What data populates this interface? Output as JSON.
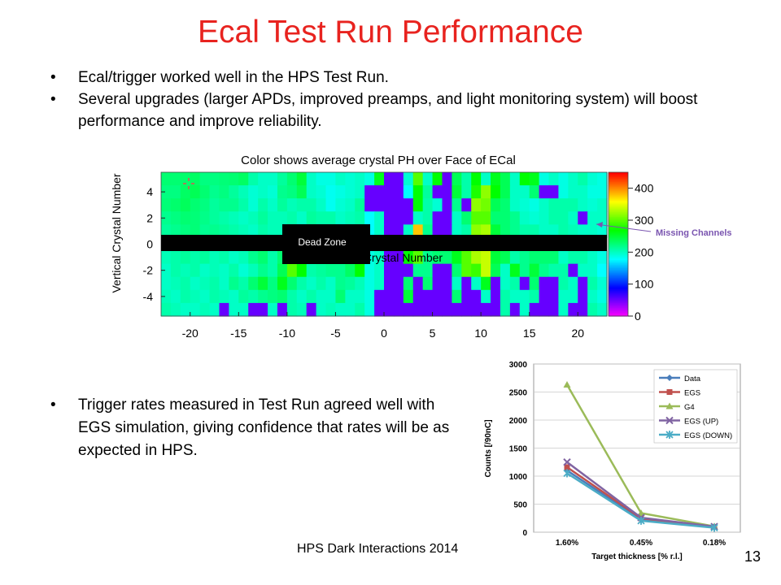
{
  "title": "Ecal Test Run Performance",
  "bullets_top": [
    "Ecal/trigger worked well in the HPS Test Run.",
    "Several upgrades (larger APDs, improved preamps, and light monitoring system) will boost performance and improve reliability."
  ],
  "bullets_bottom": [
    "Trigger rates measured in Test Run agreed well with EGS simulation, giving confidence that rates will be as expected in HPS."
  ],
  "footer": "HPS Dark Interactions 2014",
  "page_number": "13",
  "chart_data": [
    {
      "type": "heatmap",
      "title": "Color shows average crystal PH over Face of ECal",
      "xlabel": "Horizontal Crystal Number",
      "ylabel": "Vertical Crystal Number",
      "x_ticks": [
        "-20",
        "-15",
        "-10",
        "-5",
        "0",
        "5",
        "10",
        "15",
        "20"
      ],
      "y_ticks": [
        "4",
        "2",
        "0",
        "-2",
        "-4"
      ],
      "colorbar_ticks": [
        "400",
        "300",
        "200",
        "100",
        "0"
      ],
      "xlim": [
        -23,
        23
      ],
      "ylim": [
        -5.5,
        5.5
      ],
      "zlim": [
        0,
        450
      ],
      "annotations": {
        "dead_zone": "Dead Zone",
        "missing_channels": "Missing Channels"
      },
      "rows_y": [
        5,
        4,
        3,
        2,
        1,
        -1,
        -2,
        -3,
        -4,
        -5
      ],
      "x_start": -23,
      "z": [
        [
          230,
          230,
          232,
          235,
          225,
          225,
          228,
          230,
          235,
          210,
          200,
          200,
          215,
          230,
          250,
          200,
          190,
          190,
          200,
          195,
          200,
          190,
          260,
          0,
          0,
          195,
          300,
          200,
          270,
          0,
          240,
          210,
          270,
          200,
          260,
          240,
          200,
          270,
          260,
          190,
          200,
          190,
          200,
          210,
          195,
          190
        ],
        [
          225,
          225,
          235,
          240,
          230,
          220,
          225,
          215,
          205,
          195,
          200,
          195,
          220,
          225,
          240,
          200,
          195,
          185,
          190,
          195,
          200,
          0,
          0,
          0,
          0,
          180,
          270,
          215,
          0,
          0,
          250,
          210,
          280,
          320,
          270,
          240,
          200,
          200,
          230,
          0,
          0,
          190,
          200,
          200,
          190,
          190
        ],
        [
          228,
          232,
          238,
          230,
          225,
          215,
          220,
          220,
          210,
          195,
          210,
          200,
          215,
          205,
          210,
          210,
          200,
          185,
          195,
          200,
          215,
          0,
          0,
          0,
          0,
          0,
          270,
          210,
          195,
          0,
          220,
          0,
          320,
          310,
          240,
          230,
          200,
          195,
          190,
          200,
          210,
          210,
          210,
          200,
          195,
          200
        ],
        [
          220,
          225,
          230,
          228,
          222,
          215,
          210,
          205,
          200,
          205,
          215,
          205,
          205,
          210,
          200,
          215,
          210,
          210,
          200,
          205,
          210,
          180,
          200,
          0,
          0,
          0,
          200,
          210,
          0,
          0,
          200,
          230,
          300,
          300,
          230,
          230,
          220,
          200,
          195,
          200,
          210,
          210,
          200,
          0,
          200,
          200
        ],
        [
          215,
          220,
          225,
          228,
          218,
          220,
          215,
          210,
          205,
          200,
          210,
          205,
          205,
          215,
          210,
          205,
          220,
          215,
          225,
          230,
          210,
          180,
          200,
          0,
          0,
          200,
          380,
          220,
          0,
          0,
          200,
          210,
          320,
          330,
          250,
          230,
          220,
          210,
          210,
          200,
          200,
          210,
          205,
          200,
          200,
          195
        ],
        [
          205,
          210,
          215,
          210,
          215,
          205,
          210,
          200,
          205,
          220,
          230,
          210,
          230,
          270,
          260,
          230,
          200,
          210,
          240,
          245,
          270,
          190,
          200,
          0,
          0,
          270,
          300,
          220,
          230,
          230,
          260,
          300,
          330,
          340,
          250,
          240,
          210,
          220,
          230,
          230,
          230,
          200,
          210,
          210,
          200,
          190
        ],
        [
          200,
          210,
          205,
          210,
          200,
          205,
          200,
          210,
          195,
          205,
          220,
          210,
          240,
          300,
          270,
          210,
          215,
          220,
          220,
          235,
          270,
          190,
          200,
          0,
          0,
          0,
          220,
          220,
          0,
          0,
          230,
          300,
          290,
          340,
          240,
          200,
          260,
          220,
          250,
          220,
          210,
          210,
          0,
          200,
          200,
          180
        ],
        [
          200,
          205,
          210,
          200,
          205,
          210,
          200,
          220,
          210,
          230,
          250,
          225,
          260,
          230,
          210,
          200,
          210,
          200,
          220,
          215,
          205,
          190,
          200,
          0,
          0,
          230,
          0,
          230,
          0,
          0,
          200,
          0,
          200,
          260,
          0,
          200,
          210,
          0,
          230,
          0,
          0,
          210,
          200,
          0,
          210,
          195
        ],
        [
          205,
          200,
          210,
          205,
          200,
          210,
          205,
          200,
          215,
          210,
          220,
          225,
          230,
          210,
          200,
          210,
          200,
          200,
          230,
          200,
          200,
          190,
          0,
          0,
          0,
          250,
          0,
          0,
          0,
          0,
          230,
          0,
          0,
          200,
          0,
          210,
          200,
          200,
          210,
          0,
          0,
          200,
          200,
          0,
          200,
          190
        ],
        [
          210,
          205,
          200,
          200,
          205,
          200,
          0,
          200,
          200,
          0,
          0,
          200,
          0,
          210,
          205,
          0,
          200,
          205,
          200,
          200,
          210,
          190,
          0,
          0,
          0,
          0,
          0,
          0,
          0,
          0,
          0,
          0,
          0,
          0,
          0,
          210,
          0,
          200,
          0,
          0,
          0,
          200,
          0,
          0,
          210,
          200
        ]
      ]
    },
    {
      "type": "line",
      "xlabel": "Target thickness [% r.l.]",
      "ylabel": "Counts [/90nC]",
      "categories": [
        "1.60%",
        "0.45%",
        "0.18%"
      ],
      "ylim": [
        0,
        3000
      ],
      "y_ticks": [
        0,
        500,
        1000,
        1500,
        2000,
        2500,
        3000
      ],
      "legend_position": "top-right",
      "series": [
        {
          "name": "Data",
          "values": [
            1100,
            230,
            85
          ],
          "color": "#4a7ebb",
          "marker": "diamond"
        },
        {
          "name": "EGS",
          "values": [
            1160,
            250,
            95
          ],
          "color": "#c0504d",
          "marker": "square"
        },
        {
          "name": "G4",
          "values": [
            2630,
            340,
            105
          ],
          "color": "#9bbb59",
          "marker": "triangle"
        },
        {
          "name": "EGS (UP)",
          "values": [
            1250,
            260,
            100
          ],
          "color": "#8064a2",
          "marker": "x"
        },
        {
          "name": "EGS (DOWN)",
          "values": [
            1050,
            205,
            80
          ],
          "color": "#4bacc6",
          "marker": "star"
        }
      ]
    }
  ]
}
